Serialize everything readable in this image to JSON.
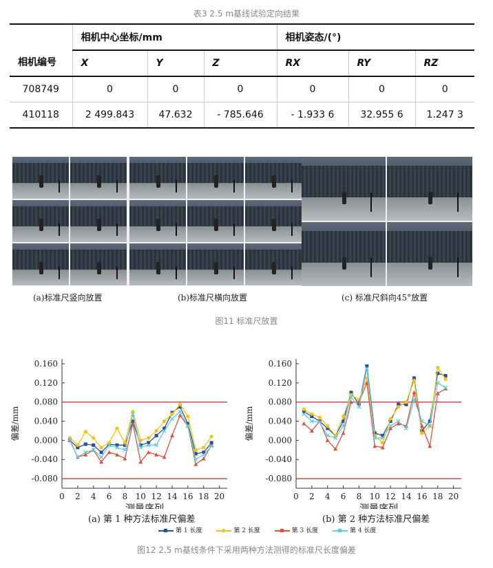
{
  "table": {
    "caption": "表3   2.5 m基线试验定向结果",
    "header_row_label": "相机编号",
    "group_center": "相机中心坐标/mm",
    "group_attitude": "相机姿态/(°)",
    "columns": [
      "X",
      "Y",
      "Z",
      "RX",
      "RY",
      "RZ"
    ],
    "rows": [
      [
        "708749",
        "0",
        "0",
        "0",
        "0",
        "0",
        "0"
      ],
      [
        "410118",
        "2 499.843",
        "47.632",
        "- 785.646",
        "- 1.933 6",
        "32.955 6",
        "1.247 3"
      ]
    ]
  },
  "figure11": {
    "sub_labels": [
      "(a)标准尺竖向放置",
      "(b)标准尺横向放置",
      "(c) 标准尺斜向45°放置"
    ],
    "caption": "图11   标准尺放置"
  },
  "figure12": {
    "caption": "图12   2.5 m基线条件下采用两种方法测得的标准尺长度偏差",
    "legend": [
      "第 1 长度",
      "第 2 长度",
      "第 3 长度",
      "第 4 长度"
    ],
    "series_colors": [
      "#2a4e9a",
      "#f2c21b",
      "#d6533f",
      "#66c9d6"
    ],
    "limit_color": "#c8394a"
  },
  "chart_data": [
    {
      "type": "line",
      "title": "(a) 第 1 种方法标准尺偏差",
      "xlabel": "测量序列",
      "ylabel": "偏差/mm",
      "xlim": [
        0,
        21
      ],
      "ylim": [
        -0.1,
        0.17
      ],
      "xticks": [
        0,
        2,
        4,
        6,
        8,
        10,
        12,
        14,
        16,
        18,
        20
      ],
      "yticks": [
        "-0.080",
        "-0.040",
        "0.000",
        "0.040",
        "0.080",
        "0.120",
        "0.160"
      ],
      "limit_lines": [
        0.08,
        -0.08
      ],
      "x": [
        1,
        2,
        3,
        4,
        5,
        6,
        7,
        8,
        9,
        10,
        11,
        12,
        13,
        14,
        15,
        16,
        17,
        18,
        19
      ],
      "series": [
        {
          "name": "第 1 长度",
          "values": [
            0.0,
            -0.015,
            -0.008,
            -0.01,
            -0.025,
            -0.008,
            -0.01,
            -0.01,
            0.04,
            -0.01,
            -0.005,
            0.01,
            0.025,
            0.058,
            0.07,
            0.035,
            -0.028,
            -0.025,
            -0.005
          ]
        },
        {
          "name": "第 2 长度",
          "values": [
            0.005,
            -0.01,
            0.018,
            0.005,
            -0.015,
            -0.005,
            0.025,
            -0.005,
            0.06,
            0.0,
            0.005,
            0.02,
            0.04,
            0.055,
            0.075,
            0.05,
            -0.02,
            -0.015,
            0.008
          ]
        },
        {
          "name": "第 3 长度",
          "values": [
            0.0,
            -0.035,
            -0.03,
            -0.02,
            -0.045,
            -0.025,
            -0.03,
            -0.038,
            0.035,
            -0.045,
            -0.025,
            -0.03,
            -0.035,
            0.01,
            0.052,
            0.03,
            -0.05,
            -0.038,
            -0.01
          ]
        },
        {
          "name": "第 4 长度",
          "values": [
            0.002,
            -0.035,
            -0.025,
            -0.02,
            -0.035,
            -0.01,
            -0.015,
            -0.02,
            0.055,
            -0.015,
            -0.01,
            -0.01,
            0.02,
            0.045,
            0.06,
            0.03,
            -0.04,
            -0.03,
            -0.012
          ]
        }
      ]
    },
    {
      "type": "line",
      "title": "(b) 第 2 种方法标准尺偏差",
      "xlabel": "测量序列",
      "ylabel": "偏差/mm",
      "xlim": [
        0,
        21
      ],
      "ylim": [
        -0.1,
        0.17
      ],
      "xticks": [
        0,
        2,
        4,
        6,
        8,
        10,
        12,
        14,
        16,
        18,
        20
      ],
      "yticks": [
        "-0.080",
        "-0.040",
        "0.000",
        "0.040",
        "0.080",
        "0.120",
        "0.160"
      ],
      "limit_lines": [
        0.08,
        -0.08
      ],
      "x": [
        1,
        2,
        3,
        4,
        5,
        6,
        7,
        8,
        9,
        10,
        11,
        12,
        13,
        14,
        15,
        16,
        17,
        18,
        19
      ],
      "series": [
        {
          "name": "第 1 长度",
          "values": [
            0.06,
            0.05,
            0.04,
            0.025,
            0.01,
            0.04,
            0.1,
            0.075,
            0.155,
            0.015,
            0.01,
            0.04,
            0.075,
            0.075,
            0.13,
            0.02,
            0.04,
            0.14,
            0.135
          ]
        },
        {
          "name": "第 2 长度",
          "values": [
            0.065,
            0.055,
            0.048,
            0.03,
            0.01,
            0.05,
            0.095,
            0.085,
            0.13,
            0.01,
            -0.005,
            0.045,
            0.07,
            0.08,
            0.125,
            0.015,
            0.03,
            0.152,
            0.128
          ]
        },
        {
          "name": "第 3 长度",
          "values": [
            0.035,
            0.02,
            0.04,
            0.0,
            -0.018,
            0.015,
            0.08,
            0.08,
            0.12,
            -0.012,
            -0.015,
            0.025,
            0.035,
            0.03,
            0.1,
            0.03,
            -0.012,
            0.098,
            0.108
          ]
        },
        {
          "name": "第 4 长度",
          "values": [
            0.055,
            0.04,
            0.038,
            0.01,
            0.005,
            0.03,
            0.09,
            0.07,
            0.15,
            0.005,
            0.005,
            0.03,
            0.04,
            0.025,
            0.085,
            0.04,
            0.03,
            0.12,
            0.11
          ]
        }
      ]
    }
  ]
}
